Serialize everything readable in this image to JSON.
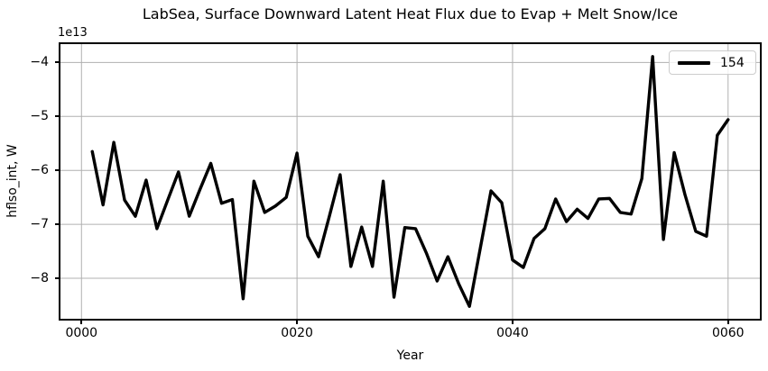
{
  "title": "LabSea, Surface Downward Latent Heat Flux due to Evap + Melt Snow/Ice",
  "offset_text": "1e13",
  "xlabel": "Year",
  "ylabel": "hflso_int, W",
  "legend": {
    "label": "154"
  },
  "colors": {
    "line": "#000000",
    "grid": "#b0b0b0",
    "spine": "#000000",
    "legend_border": "#cccccc",
    "background": "#ffffff"
  },
  "chart_data": {
    "type": "line",
    "title": "LabSea, Surface Downward Latent Heat Flux due to Evap + Melt Snow/Ice",
    "xlabel": "Year",
    "ylabel": "hflso_int, W",
    "value_scale": 10000000000000.0,
    "grid": true,
    "legend_position": "upper right",
    "xlim": [
      -1.95,
      62.95
    ],
    "ylim_scaled": [
      -8.75,
      -3.66
    ],
    "x_ticks": {
      "positions": [
        0,
        20,
        40,
        60
      ],
      "labels": [
        "0000",
        "0020",
        "0040",
        "0060"
      ]
    },
    "y_ticks": {
      "positions": [
        -4,
        -5,
        -6,
        -7,
        -8
      ],
      "labels": [
        "−4",
        "−5",
        "−6",
        "−7",
        "−8"
      ]
    },
    "x": [
      1,
      2,
      3,
      4,
      5,
      6,
      7,
      8,
      9,
      10,
      11,
      12,
      13,
      14,
      15,
      16,
      17,
      18,
      19,
      20,
      21,
      22,
      23,
      24,
      25,
      26,
      27,
      28,
      29,
      30,
      31,
      32,
      33,
      34,
      35,
      36,
      37,
      38,
      39,
      40,
      41,
      42,
      43,
      44,
      45,
      46,
      47,
      48,
      49,
      50,
      51,
      52,
      53,
      54,
      55,
      56,
      57,
      58,
      59,
      60
    ],
    "series": [
      {
        "name": "154",
        "values_scaled_1e13": [
          -5.65,
          -6.64,
          -5.48,
          -6.55,
          -6.85,
          -6.18,
          -7.08,
          -6.55,
          -6.03,
          -6.85,
          -6.35,
          -5.87,
          -6.61,
          -6.54,
          -8.38,
          -6.2,
          -6.78,
          -6.66,
          -6.5,
          -5.68,
          -7.22,
          -7.6,
          -6.85,
          -6.08,
          -7.78,
          -7.05,
          -7.78,
          -6.2,
          -8.35,
          -7.06,
          -7.08,
          -7.53,
          -8.05,
          -7.6,
          -8.1,
          -8.52,
          -7.45,
          -6.38,
          -6.6,
          -7.66,
          -7.8,
          -7.26,
          -7.08,
          -6.53,
          -6.95,
          -6.72,
          -6.89,
          -6.53,
          -6.52,
          -6.78,
          -6.81,
          -6.15,
          -3.89,
          -7.28,
          -5.67,
          -6.45,
          -7.13,
          -7.22,
          -5.35,
          -5.06
        ]
      }
    ]
  }
}
